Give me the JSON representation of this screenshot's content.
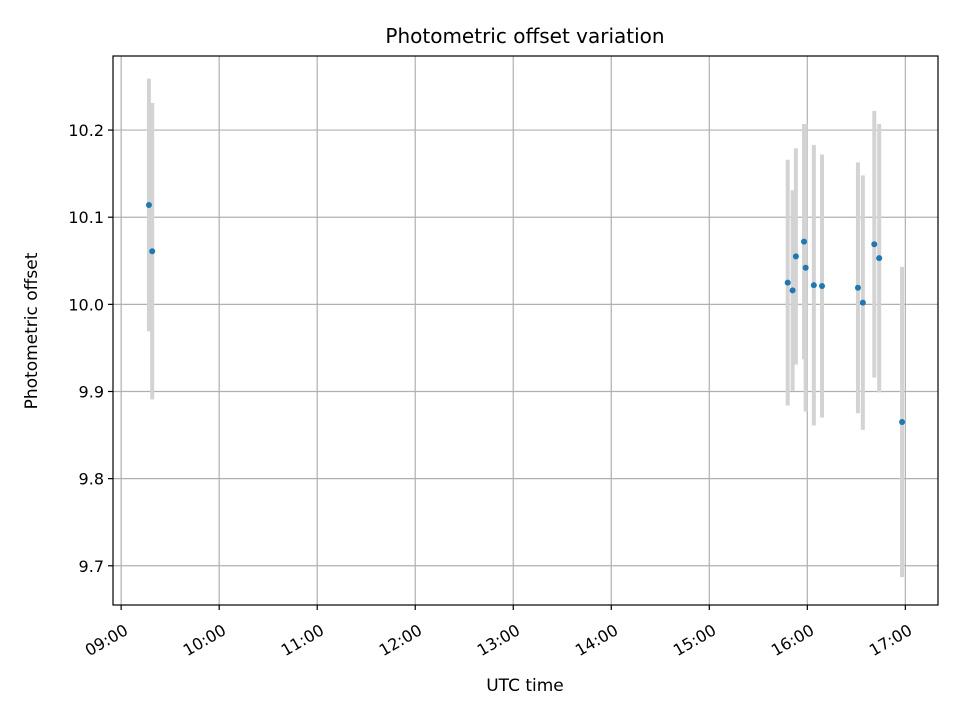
{
  "chart_data": {
    "type": "scatter",
    "title": "Photometric offset variation",
    "xlabel": "UTC time",
    "ylabel": "Photometric offset",
    "x_unit": "time (hours UTC)",
    "xlim": [
      "08:55",
      "17:20"
    ],
    "ylim": [
      9.655,
      10.285
    ],
    "x_ticks": [
      "09:00",
      "10:00",
      "11:00",
      "12:00",
      "13:00",
      "14:00",
      "15:00",
      "16:00",
      "17:00"
    ],
    "y_ticks": [
      "9.7",
      "9.8",
      "9.9",
      "10.0",
      "10.1",
      "10.2"
    ],
    "grid": true,
    "marker_color": "#1f77b4",
    "errorbar_color": "#d3d3d3",
    "points": [
      {
        "x": "09:17",
        "y": 10.114,
        "yerr": 0.145
      },
      {
        "x": "09:19",
        "y": 10.061,
        "yerr": 0.17
      },
      {
        "x": "15:48",
        "y": 10.025,
        "yerr": 0.141
      },
      {
        "x": "15:51",
        "y": 10.016,
        "yerr": 0.115
      },
      {
        "x": "15:53",
        "y": 10.055,
        "yerr": 0.124
      },
      {
        "x": "15:58",
        "y": 10.072,
        "yerr": 0.135
      },
      {
        "x": "15:59",
        "y": 10.042,
        "yerr": 0.165
      },
      {
        "x": "16:04",
        "y": 10.022,
        "yerr": 0.161
      },
      {
        "x": "16:09",
        "y": 10.021,
        "yerr": 0.151
      },
      {
        "x": "16:31",
        "y": 10.019,
        "yerr": 0.144
      },
      {
        "x": "16:34",
        "y": 10.002,
        "yerr": 0.146
      },
      {
        "x": "16:41",
        "y": 10.069,
        "yerr": 0.153
      },
      {
        "x": "16:44",
        "y": 10.053,
        "yerr": 0.154
      },
      {
        "x": "16:58",
        "y": 9.865,
        "yerr": 0.178
      }
    ]
  }
}
